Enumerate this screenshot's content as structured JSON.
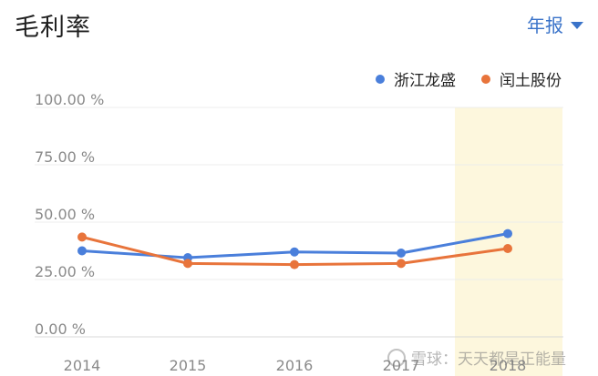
{
  "header": {
    "title": "毛利率",
    "period_label": "年报"
  },
  "watermark": {
    "text": "雪球：天天都是正能量"
  },
  "chart_data": {
    "type": "line",
    "x": [
      "2014",
      "2015",
      "2016",
      "2017",
      "2018"
    ],
    "series": [
      {
        "name": "浙江龙盛",
        "color": "#4a7fdb",
        "values": [
          37.5,
          34.5,
          37.0,
          36.5,
          45.0
        ]
      },
      {
        "name": "闰土股份",
        "color": "#e8743b",
        "values": [
          43.5,
          32.0,
          31.5,
          32.0,
          38.5
        ]
      }
    ],
    "ylim": [
      0,
      100
    ],
    "yticks": [
      "0.00 %",
      "25.00 %",
      "50.00 %",
      "75.00 %",
      "100.00 %"
    ],
    "highlight_category": "2018",
    "highlight_color": "#fdf7dd",
    "legend_position": "top-right",
    "grid": true
  }
}
